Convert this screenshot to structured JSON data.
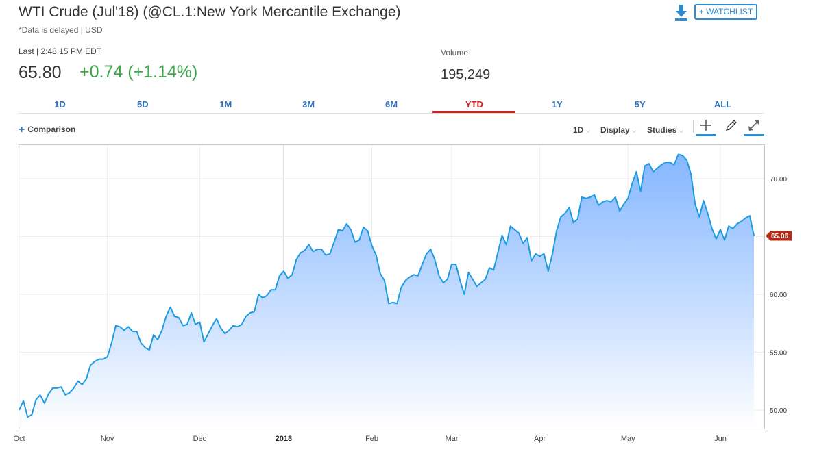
{
  "header": {
    "title": "WTI Crude (Jul'18) (@CL.1:New York Mercantile Exchange)",
    "delay_note": "*Data is delayed | USD",
    "watchlist_label": "+ WATCHLIST",
    "download_icon": "download-icon"
  },
  "quote": {
    "last_label": "Last | 2:48:15 PM EDT",
    "price": "65.80",
    "change": "+0.74 (+1.14%)",
    "volume_label": "Volume",
    "volume_value": "195,249",
    "up_color": "#3ca64a"
  },
  "tabs": [
    {
      "label": "1D",
      "active": false
    },
    {
      "label": "5D",
      "active": false
    },
    {
      "label": "1M",
      "active": false
    },
    {
      "label": "3M",
      "active": false
    },
    {
      "label": "6M",
      "active": false
    },
    {
      "label": "YTD",
      "active": true
    },
    {
      "label": "1Y",
      "active": false
    },
    {
      "label": "5Y",
      "active": false
    },
    {
      "label": "ALL",
      "active": false
    }
  ],
  "toolbar": {
    "comparison_label": "Comparison",
    "interval_label": "1D",
    "display_label": "Display",
    "studies_label": "Studies",
    "tools": [
      "crosshair-icon",
      "pencil-icon",
      "expand-icon"
    ]
  },
  "chart_data": {
    "type": "area",
    "line_color": "#1e9be0",
    "fill_top_color": "#7fb3ff",
    "fill_bottom_color": "#ffffff",
    "y_ticks": [
      50,
      55,
      60,
      65,
      70
    ],
    "y_tick_labels": [
      "50.00",
      "55.00",
      "60.00",
      "65.00",
      "70.00"
    ],
    "ylim": [
      48.4,
      72.9
    ],
    "x_tick_labels": [
      {
        "label": "Oct",
        "index": 0,
        "bold": false
      },
      {
        "label": "Nov",
        "index": 21,
        "bold": false
      },
      {
        "label": "Dec",
        "index": 43,
        "bold": false
      },
      {
        "label": "2018",
        "index": 63,
        "bold": true
      },
      {
        "label": "Feb",
        "index": 84,
        "bold": false
      },
      {
        "label": "Mar",
        "index": 103,
        "bold": false
      },
      {
        "label": "Apr",
        "index": 124,
        "bold": false
      },
      {
        "label": "May",
        "index": 145,
        "bold": false
      },
      {
        "label": "Jun",
        "index": 167,
        "bold": false
      }
    ],
    "last_value_label": "65.06",
    "last_value_color": "#b32d16",
    "values": [
      50.0,
      50.8,
      49.4,
      49.6,
      50.9,
      51.3,
      50.6,
      51.4,
      51.9,
      51.9,
      52.0,
      51.3,
      51.5,
      51.9,
      52.5,
      52.2,
      52.7,
      53.9,
      54.2,
      54.4,
      54.4,
      54.6,
      55.8,
      57.3,
      57.2,
      56.9,
      57.2,
      56.8,
      56.8,
      55.8,
      55.4,
      55.2,
      56.5,
      56.1,
      56.9,
      58.1,
      58.9,
      58.1,
      58.0,
      57.3,
      57.4,
      58.4,
      57.4,
      57.6,
      55.9,
      56.6,
      57.3,
      57.9,
      57.1,
      56.6,
      56.9,
      57.3,
      57.2,
      57.4,
      58.1,
      58.4,
      58.5,
      60.0,
      59.7,
      59.9,
      60.4,
      60.4,
      61.6,
      62.0,
      61.4,
      61.7,
      63.0,
      63.6,
      63.8,
      64.3,
      63.7,
      63.9,
      63.9,
      63.4,
      63.5,
      64.5,
      65.6,
      65.5,
      66.1,
      65.6,
      64.5,
      64.7,
      65.8,
      65.5,
      64.2,
      63.4,
      61.8,
      61.2,
      59.2,
      59.3,
      59.2,
      60.6,
      61.2,
      61.5,
      61.7,
      61.6,
      62.6,
      63.5,
      63.9,
      63.0,
      61.6,
      61.0,
      61.3,
      62.6,
      62.6,
      61.2,
      60.0,
      61.9,
      61.3,
      60.7,
      61.0,
      61.3,
      62.3,
      62.1,
      63.6,
      65.1,
      64.3,
      65.9,
      65.6,
      65.3,
      64.4,
      64.9,
      62.9,
      63.5,
      63.3,
      63.5,
      62.0,
      63.5,
      65.5,
      66.7,
      67.0,
      67.5,
      66.2,
      66.5,
      68.4,
      68.3,
      68.4,
      68.6,
      67.7,
      68.0,
      68.1,
      68.0,
      68.4,
      67.2,
      67.8,
      68.3,
      69.6,
      70.6,
      68.9,
      71.1,
      71.3,
      70.6,
      70.9,
      71.2,
      71.4,
      71.4,
      71.2,
      72.1,
      72.0,
      71.6,
      70.4,
      67.8,
      66.7,
      68.1,
      67.0,
      65.7,
      64.8,
      65.6,
      64.7,
      65.9,
      65.7,
      66.1,
      66.3,
      66.6,
      66.8,
      65.06
    ]
  }
}
